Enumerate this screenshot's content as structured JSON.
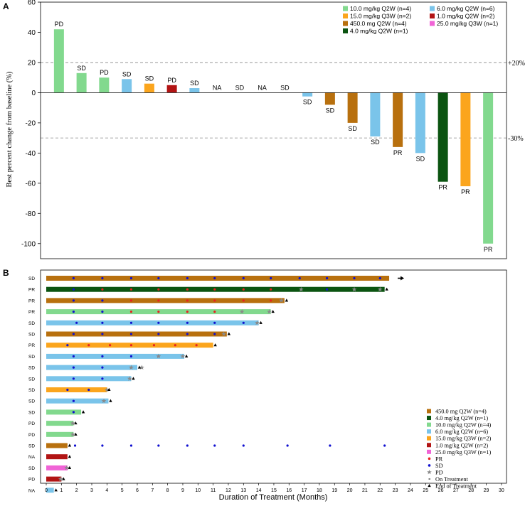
{
  "colors": {
    "c450": "#b8700e",
    "c4": "#0b5411",
    "c10": "#82d98e",
    "c6": "#7ac4ea",
    "c15": "#fba51d",
    "c1": "#b21414",
    "c25": "#f064d6",
    "pr_dot": "#e82020",
    "sd_dot": "#1010d0",
    "pd_star": "#8a8a8a"
  },
  "chart_data": [
    {
      "type": "bar",
      "panel_label": "A",
      "ylabel": "Best percent change from baseline (%)",
      "ylim": [
        -110,
        60
      ],
      "yticks": [
        60,
        40,
        20,
        0,
        -20,
        -40,
        -60,
        -80,
        -100
      ],
      "ref_lines": [
        {
          "value": 20,
          "label": "+20%"
        },
        {
          "value": -30,
          "label": "-30%"
        }
      ],
      "legend": [
        {
          "label": "10.0 mg/kg Q2W (n=4)",
          "color_key": "c10"
        },
        {
          "label": "6.0 mg/kg Q2W (n=6)",
          "color_key": "c6"
        },
        {
          "label": "15.0 mg/kg Q3W (n=2)",
          "color_key": "c15"
        },
        {
          "label": "1.0 mg/kg Q2W (n=2)",
          "color_key": "c1"
        },
        {
          "label": "450.0 mg Q2W (n=4)",
          "color_key": "c450"
        },
        {
          "label": "25.0 mg/kg Q3W (n=1)",
          "color_key": "c25"
        },
        {
          "label": "4.0 mg/kg Q2W (n=1)",
          "color_key": "c4"
        }
      ],
      "bars": [
        {
          "value": 42,
          "label": "PD",
          "color_key": "c10"
        },
        {
          "value": 13,
          "label": "SD",
          "color_key": "c10"
        },
        {
          "value": 10,
          "label": "PD",
          "color_key": "c10"
        },
        {
          "value": 9,
          "label": "SD",
          "color_key": "c6"
        },
        {
          "value": 6,
          "label": "SD",
          "color_key": "c15"
        },
        {
          "value": 5,
          "label": "PD",
          "color_key": "c1"
        },
        {
          "value": 3,
          "label": "SD",
          "color_key": "c6"
        },
        {
          "value": 0,
          "label": "NA",
          "color_key": "c6"
        },
        {
          "value": 0,
          "label": "SD",
          "color_key": "c6"
        },
        {
          "value": 0,
          "label": "NA",
          "color_key": "c6"
        },
        {
          "value": 0,
          "label": "SD",
          "color_key": "c6"
        },
        {
          "value": -2.5,
          "label": "SD",
          "color_key": "c6"
        },
        {
          "value": -8,
          "label": "SD",
          "color_key": "c450"
        },
        {
          "value": -20,
          "label": "SD",
          "color_key": "c450"
        },
        {
          "value": -29,
          "label": "SD",
          "color_key": "c6"
        },
        {
          "value": -36,
          "label": "PR",
          "color_key": "c450"
        },
        {
          "value": -40,
          "label": "SD",
          "color_key": "c6"
        },
        {
          "value": -59,
          "label": "PR",
          "color_key": "c4"
        },
        {
          "value": -62,
          "label": "PR",
          "color_key": "c15"
        },
        {
          "value": -100,
          "label": "PR",
          "color_key": "c10"
        }
      ]
    },
    {
      "type": "swimmer",
      "panel_label": "B",
      "xlabel": "Duration of Treatment (Months)",
      "xlim": [
        0,
        30
      ],
      "xticks": [
        0,
        1,
        2,
        3,
        4,
        5,
        6,
        7,
        8,
        9,
        10,
        11,
        12,
        13,
        14,
        15,
        16,
        17,
        18,
        19,
        20,
        21,
        22,
        23,
        24,
        25,
        26,
        27,
        28,
        29,
        30
      ],
      "legend": [
        {
          "label": "450.0 mg Q2W (n=4)",
          "kind": "square",
          "color_key": "c450"
        },
        {
          "label": "4.0 mg/kg Q2W (n=1)",
          "kind": "square",
          "color_key": "c4"
        },
        {
          "label": "10.0 mg/kg Q2W (n=4)",
          "kind": "square",
          "color_key": "c10"
        },
        {
          "label": "6.0 mg/kg Q2W (n=6)",
          "kind": "square",
          "color_key": "c6"
        },
        {
          "label": "15.0 mg/kg Q3W (n=2)",
          "kind": "square",
          "color_key": "c15"
        },
        {
          "label": "1.0 mg/kg Q2W (n=2)",
          "kind": "square",
          "color_key": "c1"
        },
        {
          "label": "25.0 mg/kg Q3W (n=1)",
          "kind": "square",
          "color_key": "c25"
        },
        {
          "label": "PR",
          "kind": "dot",
          "color_key": "pr_dot"
        },
        {
          "label": "SD",
          "kind": "dot",
          "color_key": "sd_dot"
        },
        {
          "label": "PD",
          "kind": "star",
          "color_key": "pd_star"
        },
        {
          "label": "On Treatment",
          "kind": "arrow",
          "color_key": ""
        },
        {
          "label": "End of Treatment",
          "kind": "triangle",
          "color_key": ""
        }
      ],
      "rows": [
        {
          "label": "SD",
          "end": 22.6,
          "color_key": "c450",
          "ongoing": true,
          "sd": [
            1.8,
            3.7,
            5.6,
            7.4,
            9.3,
            11.1,
            13.0,
            14.8,
            16.7,
            18.5,
            20.3,
            22.0
          ],
          "pr": [],
          "pd": []
        },
        {
          "label": "PR",
          "end": 22.3,
          "color_key": "c4",
          "ongoing": false,
          "sd": [
            1.8,
            18.5
          ],
          "pr": [
            3.7,
            5.6,
            7.4,
            9.3,
            11.1,
            13.0,
            14.8
          ],
          "pd": [
            16.8,
            20.3,
            22.0
          ]
        },
        {
          "label": "PR",
          "end": 15.7,
          "color_key": "c450",
          "ongoing": false,
          "sd": [
            1.8,
            3.7
          ],
          "pr": [
            5.6,
            7.4,
            9.3,
            11.1,
            13.0,
            14.8
          ],
          "pd": [
            15.5
          ]
        },
        {
          "label": "PR",
          "end": 14.8,
          "color_key": "c10",
          "ongoing": false,
          "sd": [
            1.8,
            3.7
          ],
          "pr": [
            5.6,
            7.4,
            9.3,
            11.1
          ],
          "pd": [
            12.9,
            14.7
          ]
        },
        {
          "label": "SD",
          "end": 14.0,
          "color_key": "c6",
          "ongoing": false,
          "sd": [
            2.0,
            3.7,
            5.6,
            7.4,
            9.3,
            11.1,
            13.0
          ],
          "pr": [],
          "pd": [
            13.9
          ]
        },
        {
          "label": "SD",
          "end": 11.9,
          "color_key": "c450",
          "ongoing": false,
          "sd": [
            1.8,
            3.7,
            5.6,
            7.4,
            9.3,
            11.1
          ],
          "pr": [],
          "pd": [
            11.7
          ]
        },
        {
          "label": "PR",
          "end": 11.0,
          "color_key": "c15",
          "ongoing": false,
          "sd": [
            1.4
          ],
          "pr": [
            2.8,
            4.2,
            5.6,
            7.1,
            8.5,
            9.9
          ],
          "pd": []
        },
        {
          "label": "SD",
          "end": 9.1,
          "color_key": "c6",
          "ongoing": false,
          "sd": [
            1.8,
            3.7,
            5.6,
            7.4
          ],
          "pr": [],
          "pd": [
            7.4,
            9.0
          ]
        },
        {
          "label": "SD",
          "end": 6.0,
          "color_key": "c6",
          "ongoing": false,
          "sd": [
            1.8,
            3.7
          ],
          "pr": [],
          "pd": [
            5.6,
            6.3
          ]
        },
        {
          "label": "SD",
          "end": 5.6,
          "color_key": "c6",
          "ongoing": false,
          "sd": [
            1.8,
            3.7
          ],
          "pr": [],
          "pd": [
            5.5
          ]
        },
        {
          "label": "SD",
          "end": 4.0,
          "color_key": "c15",
          "ongoing": false,
          "sd": [
            1.4,
            2.8
          ],
          "pr": [],
          "pd": [
            4.0
          ]
        },
        {
          "label": "SD",
          "end": 4.1,
          "color_key": "c6",
          "ongoing": false,
          "sd": [
            1.8
          ],
          "pr": [],
          "pd": [
            3.8
          ]
        },
        {
          "label": "SD",
          "end": 2.3,
          "color_key": "c10",
          "ongoing": false,
          "sd": [
            1.8
          ],
          "pr": [],
          "pd": []
        },
        {
          "label": "PD",
          "end": 1.8,
          "color_key": "c10",
          "ongoing": false,
          "sd": [],
          "pr": [],
          "pd": [
            1.75
          ]
        },
        {
          "label": "PD",
          "end": 1.8,
          "color_key": "c10",
          "ongoing": false,
          "sd": [],
          "pr": [],
          "pd": [
            1.75
          ]
        },
        {
          "label": "SD",
          "end": 1.4,
          "color_key": "c450",
          "ongoing": false,
          "sd": [
            1.9,
            3.7,
            5.6,
            7.4,
            9.3,
            11.1,
            13.0,
            15.9,
            18.7,
            22.3
          ],
          "pr": [],
          "pd": []
        },
        {
          "label": "NA",
          "end": 1.4,
          "color_key": "c1",
          "ongoing": false,
          "sd": [],
          "pr": [],
          "pd": []
        },
        {
          "label": "SD",
          "end": 1.4,
          "color_key": "c25",
          "ongoing": false,
          "sd": [],
          "pr": [],
          "pd": [
            1.35
          ]
        },
        {
          "label": "PD",
          "end": 1.0,
          "color_key": "c1",
          "ongoing": false,
          "sd": [],
          "pr": [],
          "pd": [
            0.95
          ]
        },
        {
          "label": "NA",
          "end": 0.5,
          "color_key": "c6",
          "ongoing": false,
          "sd": [],
          "pr": [],
          "pd": []
        }
      ]
    }
  ]
}
